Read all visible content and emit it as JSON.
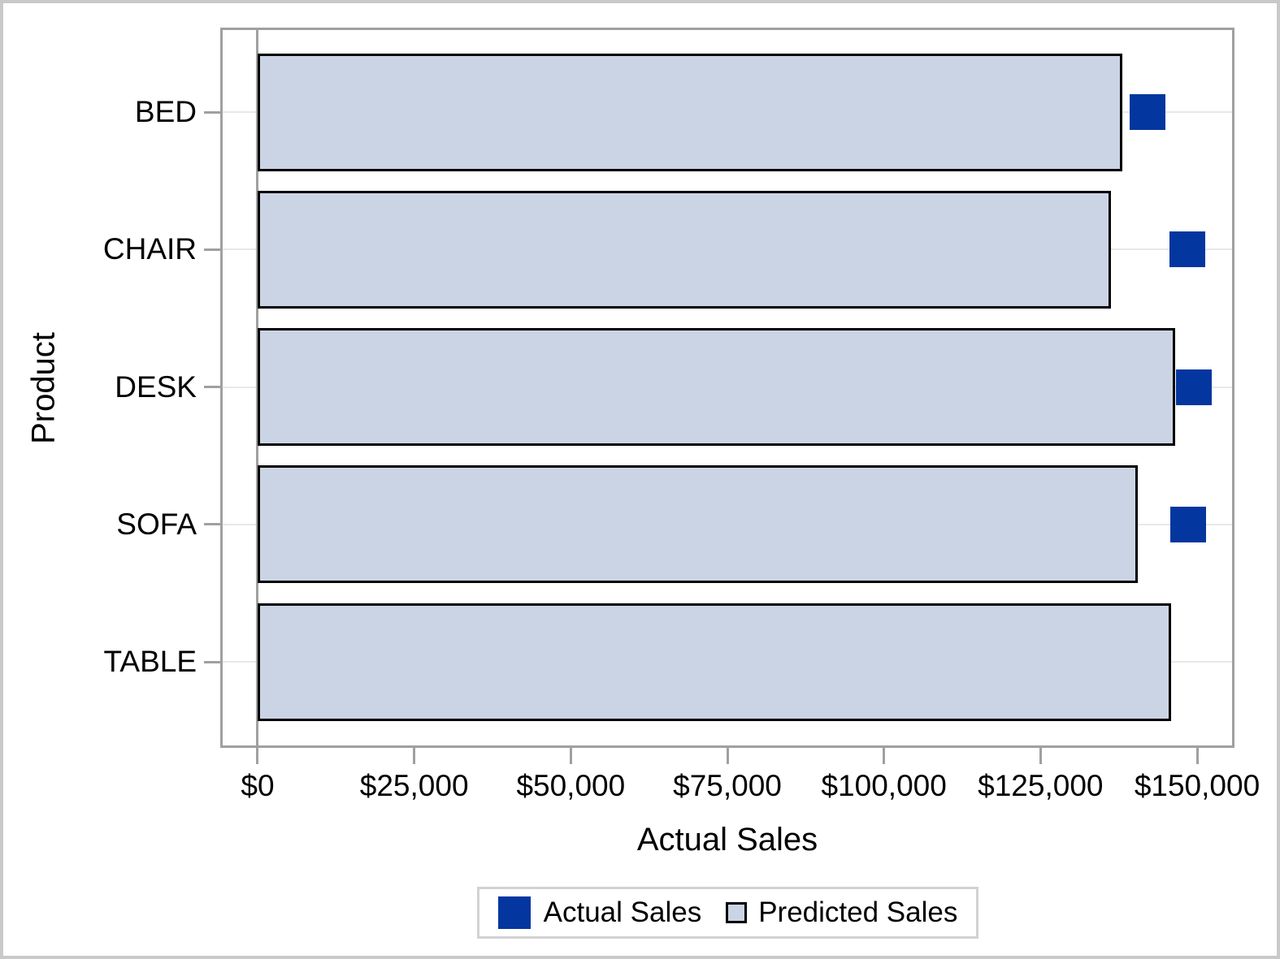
{
  "chart_data": {
    "type": "bar",
    "orientation": "horizontal",
    "title": "",
    "xlabel": "Actual Sales",
    "ylabel": "Product",
    "categories": [
      "BED",
      "CHAIR",
      "DESK",
      "SOFA",
      "TABLE"
    ],
    "series": [
      {
        "name": "Actual Sales",
        "mark": "square-marker",
        "color": "#0436A0",
        "values": [
          142100,
          148400,
          149500,
          148600,
          null
        ],
        "note": "marker for TABLE is not visible (hidden behind bar)"
      },
      {
        "name": "Predicted Sales",
        "mark": "bar",
        "fill": "#CAD4E4",
        "border": "#000000",
        "values": [
          138000,
          136200,
          146500,
          140500,
          145800
        ]
      }
    ],
    "x_ticks": [
      {
        "value": 0,
        "label": "$0"
      },
      {
        "value": 25000,
        "label": "$25,000"
      },
      {
        "value": 50000,
        "label": "$50,000"
      },
      {
        "value": 75000,
        "label": "$75,000"
      },
      {
        "value": 100000,
        "label": "$100,000"
      },
      {
        "value": 125000,
        "label": "$125,000"
      },
      {
        "value": 150000,
        "label": "$150,000"
      }
    ],
    "xlim": [
      0,
      156000
    ],
    "grid": "horizontal category gridlines only",
    "legend": {
      "position": "bottom-center",
      "entries": [
        "Actual Sales",
        "Predicted Sales"
      ]
    }
  },
  "colors": {
    "outer_border": "#C9C9C9",
    "frame": "#A0A0A0",
    "grid": "#E8E8E8",
    "tick": "#A0A0A0",
    "bar_fill": "#CAD4E4",
    "bar_border": "#000000",
    "marker": "#0436A0",
    "legend_border": "#D2D2D2",
    "text": "#000000",
    "background": "#FFFFFF"
  }
}
